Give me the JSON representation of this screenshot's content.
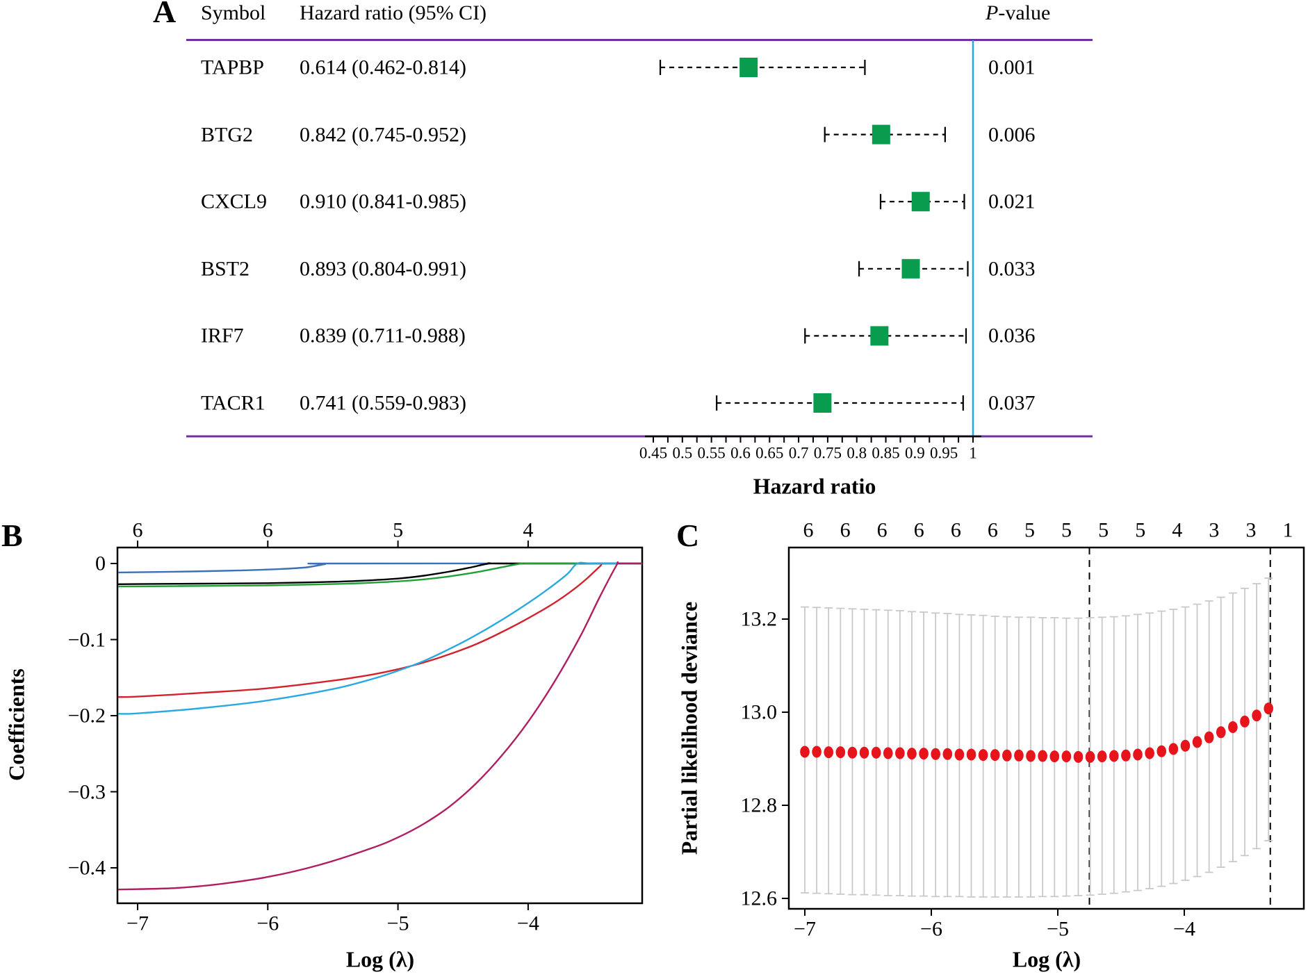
{
  "panel_labels": {
    "a": "A",
    "b": "B",
    "c": "C"
  },
  "chart_data": [
    {
      "id": "forest-plot",
      "type": "table",
      "columns": [
        "Symbol",
        "Hazard ratio (95% CI)",
        "P-value"
      ],
      "p_header_italic": "P",
      "p_header_rest": "-value",
      "xlabel": "Hazard ratio",
      "rows": [
        {
          "symbol": "TAPBP",
          "ci_text": "0.614 (0.462-0.814)",
          "hr": 0.614,
          "lo": 0.462,
          "hi": 0.814,
          "p": "0.001"
        },
        {
          "symbol": "BTG2",
          "ci_text": "0.842 (0.745-0.952)",
          "hr": 0.842,
          "lo": 0.745,
          "hi": 0.952,
          "p": "0.006"
        },
        {
          "symbol": "CXCL9",
          "ci_text": "0.910 (0.841-0.985)",
          "hr": 0.91,
          "lo": 0.841,
          "hi": 0.985,
          "p": "0.021"
        },
        {
          "symbol": "BST2",
          "ci_text": "0.893 (0.804-0.991)",
          "hr": 0.893,
          "lo": 0.804,
          "hi": 0.991,
          "p": "0.033"
        },
        {
          "symbol": "IRF7",
          "ci_text": "0.839 (0.711-0.988)",
          "hr": 0.839,
          "lo": 0.711,
          "hi": 0.988,
          "p": "0.036"
        },
        {
          "symbol": "TACR1",
          "ci_text": "0.741 (0.559-0.983)",
          "hr": 0.741,
          "lo": 0.559,
          "hi": 0.983,
          "p": "0.037"
        }
      ],
      "x_tick_labels": [
        "0.45",
        "0.5",
        "0.55",
        "0.6",
        "0.65",
        "0.7",
        "0.75",
        "0.8",
        "0.85",
        "0.9",
        "0.95",
        "1"
      ],
      "x_major_ticks": [
        0.45,
        0.5,
        0.55,
        0.6,
        0.65,
        0.7,
        0.75,
        0.8,
        0.85,
        0.9,
        0.95,
        1.0
      ],
      "minor_tick_step": 0.025,
      "xlim_axis": [
        0.45,
        1.0
      ],
      "reference_line": 1.0,
      "marker_color": "#0a9c4e",
      "reference_color": "#29a8e0",
      "rule_color": "#7030a0",
      "bar_color": "#000000"
    },
    {
      "id": "lasso-coefficient-paths",
      "type": "line",
      "xlabel": "Log (λ)",
      "ylabel": "Coefficients",
      "xlim": [
        -7.15,
        -3.12
      ],
      "ylim": [
        -0.447,
        0.021
      ],
      "x_ticks": [
        -7,
        -6,
        -5,
        -4
      ],
      "x_tick_labels": [
        "−7",
        "−6",
        "−5",
        "−4"
      ],
      "y_ticks": [
        0,
        -0.1,
        -0.2,
        -0.3,
        -0.4
      ],
      "y_tick_labels": [
        "0",
        "−0.1",
        "−0.2",
        "−0.3",
        "−0.4"
      ],
      "top_axis_labels": [
        "6",
        "6",
        "5",
        "4"
      ],
      "grid": false,
      "legend": "none",
      "series": [
        {
          "name": "series-1",
          "color": "#3c70b7",
          "points": [
            [
              -7.15,
              -0.0118
            ],
            [
              -7,
              -0.0115
            ],
            [
              -6.6,
              -0.0105
            ],
            [
              -6.2,
              -0.009
            ],
            [
              -5.9,
              -0.0072
            ],
            [
              -5.7,
              -0.005
            ],
            [
              -5.56,
              -0.0008
            ],
            [
              -5.5,
              0
            ],
            [
              -3.12,
              0
            ]
          ]
        },
        {
          "name": "series-2",
          "color": "#000000",
          "points": [
            [
              -7.15,
              -0.0272
            ],
            [
              -7,
              -0.027
            ],
            [
              -6.5,
              -0.0265
            ],
            [
              -6.0,
              -0.0258
            ],
            [
              -5.6,
              -0.0245
            ],
            [
              -5.3,
              -0.0228
            ],
            [
              -5.0,
              -0.0198
            ],
            [
              -4.8,
              -0.016
            ],
            [
              -4.6,
              -0.0105
            ],
            [
              -4.45,
              -0.0055
            ],
            [
              -4.3,
              0
            ],
            [
              -4.2,
              0
            ],
            [
              -3.12,
              0
            ]
          ]
        },
        {
          "name": "series-3",
          "color": "#21a038",
          "points": [
            [
              -7.15,
              -0.0302
            ],
            [
              -7,
              -0.03
            ],
            [
              -6.5,
              -0.0295
            ],
            [
              -6.0,
              -0.0288
            ],
            [
              -5.6,
              -0.0275
            ],
            [
              -5.3,
              -0.026
            ],
            [
              -5.0,
              -0.0235
            ],
            [
              -4.8,
              -0.0208
            ],
            [
              -4.6,
              -0.0168
            ],
            [
              -4.4,
              -0.0115
            ],
            [
              -4.2,
              -0.0048
            ],
            [
              -4.05,
              0
            ],
            [
              -3.95,
              0
            ],
            [
              -3.12,
              0
            ]
          ]
        },
        {
          "name": "series-4",
          "color": "#d2232d",
          "points": [
            [
              -7.15,
              -0.1755
            ],
            [
              -7,
              -0.175
            ],
            [
              -6.5,
              -0.17
            ],
            [
              -6.0,
              -0.164
            ],
            [
              -5.5,
              -0.154
            ],
            [
              -5.2,
              -0.146
            ],
            [
              -5.0,
              -0.139
            ],
            [
              -4.8,
              -0.13
            ],
            [
              -4.6,
              -0.119
            ],
            [
              -4.4,
              -0.106
            ],
            [
              -4.2,
              -0.09
            ],
            [
              -4.0,
              -0.072
            ],
            [
              -3.8,
              -0.052
            ],
            [
              -3.65,
              -0.034
            ],
            [
              -3.55,
              -0.02
            ],
            [
              -3.45,
              -0.004
            ],
            [
              -3.42,
              0
            ],
            [
              -3.3,
              0
            ],
            [
              -3.12,
              0
            ]
          ]
        },
        {
          "name": "series-5",
          "color": "#29a9e1",
          "points": [
            [
              -7.15,
              -0.1975
            ],
            [
              -7,
              -0.197
            ],
            [
              -6.5,
              -0.19
            ],
            [
              -6.0,
              -0.18
            ],
            [
              -5.5,
              -0.165
            ],
            [
              -5.2,
              -0.152
            ],
            [
              -5.0,
              -0.141
            ],
            [
              -4.8,
              -0.128
            ],
            [
              -4.6,
              -0.112
            ],
            [
              -4.4,
              -0.094
            ],
            [
              -4.2,
              -0.074
            ],
            [
              -4.0,
              -0.052
            ],
            [
              -3.85,
              -0.034
            ],
            [
              -3.7,
              -0.014
            ],
            [
              -3.62,
              0
            ],
            [
              -3.5,
              0
            ],
            [
              -3.12,
              0
            ]
          ]
        },
        {
          "name": "series-6",
          "color": "#b01e62",
          "points": [
            [
              -7.15,
              -0.4285
            ],
            [
              -7,
              -0.428
            ],
            [
              -6.7,
              -0.4265
            ],
            [
              -6.4,
              -0.422
            ],
            [
              -6.0,
              -0.412
            ],
            [
              -5.6,
              -0.396
            ],
            [
              -5.2,
              -0.374
            ],
            [
              -5.0,
              -0.36
            ],
            [
              -4.8,
              -0.342
            ],
            [
              -4.6,
              -0.319
            ],
            [
              -4.4,
              -0.289
            ],
            [
              -4.2,
              -0.252
            ],
            [
              -4.0,
              -0.208
            ],
            [
              -3.8,
              -0.156
            ],
            [
              -3.6,
              -0.096
            ],
            [
              -3.45,
              -0.044
            ],
            [
              -3.32,
              -0.002
            ],
            [
              -3.3,
              0
            ],
            [
              -3.12,
              0
            ]
          ]
        }
      ]
    },
    {
      "id": "cv-partial-likelihood-deviance",
      "type": "scatter",
      "xlabel": "Log (λ)",
      "ylabel": "Partial likelihood deviance",
      "xlim": [
        -7.13,
        -3.05
      ],
      "ylim": [
        12.578,
        13.354
      ],
      "x_ticks": [
        -7,
        -6,
        -5,
        -4
      ],
      "x_tick_labels": [
        "−7",
        "−6",
        "−5",
        "−4"
      ],
      "y_ticks": [
        12.6,
        12.8,
        13.0,
        13.2
      ],
      "y_tick_labels": [
        "12.6",
        "12.8",
        "13.0",
        "13.2"
      ],
      "top_axis_labels": [
        "6",
        "6",
        "6",
        "6",
        "6",
        "6",
        "5",
        "5",
        "5",
        "5",
        "4",
        "3",
        "3",
        "1"
      ],
      "x_start": -7,
      "x_step": 0.094,
      "deviance": [
        12.915,
        12.915,
        12.914,
        12.914,
        12.913,
        12.913,
        12.913,
        12.912,
        12.912,
        12.911,
        12.911,
        12.91,
        12.91,
        12.909,
        12.909,
        12.908,
        12.908,
        12.907,
        12.907,
        12.906,
        12.906,
        12.905,
        12.905,
        12.904,
        12.904,
        12.905,
        12.906,
        12.907,
        12.909,
        12.912,
        12.916,
        12.921,
        12.928,
        12.936,
        12.946,
        12.957,
        12.968,
        12.98,
        12.993,
        13.008
      ],
      "upper": [
        13.226,
        13.225,
        13.224,
        13.223,
        13.222,
        13.221,
        13.22,
        13.219,
        13.218,
        13.216,
        13.215,
        13.213,
        13.212,
        13.21,
        13.209,
        13.208,
        13.206,
        13.205,
        13.204,
        13.204,
        13.203,
        13.203,
        13.202,
        13.202,
        13.203,
        13.204,
        13.205,
        13.207,
        13.21,
        13.213,
        13.217,
        13.221,
        13.226,
        13.232,
        13.239,
        13.247,
        13.256,
        13.266,
        13.276,
        13.288
      ],
      "lower": [
        12.612,
        12.611,
        12.61,
        12.609,
        12.608,
        12.608,
        12.607,
        12.606,
        12.606,
        12.605,
        12.605,
        12.604,
        12.604,
        12.604,
        12.603,
        12.603,
        12.603,
        12.603,
        12.603,
        12.603,
        12.604,
        12.604,
        12.605,
        12.606,
        12.607,
        12.609,
        12.611,
        12.614,
        12.617,
        12.621,
        12.626,
        12.632,
        12.639,
        12.647,
        12.656,
        12.667,
        12.679,
        12.692,
        12.707,
        12.724
      ],
      "vlines": [
        -4.75,
        -3.32
      ],
      "dot_color": "#e8141c",
      "errorbar_color": "#c9c9c9"
    }
  ]
}
